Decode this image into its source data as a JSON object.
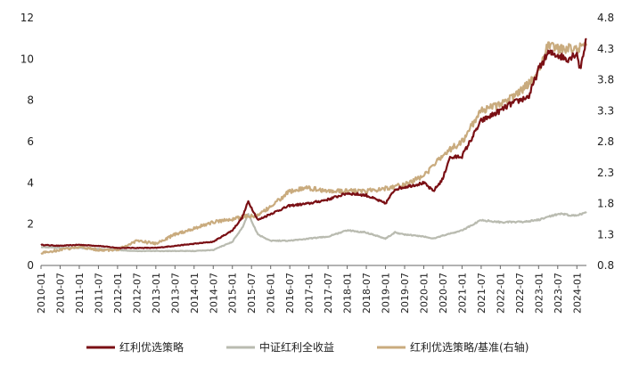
{
  "chart_data": {
    "type": "line",
    "title": "",
    "xlabel": "",
    "ylabel": "",
    "ylim": [
      0,
      12
    ],
    "yticks": [
      0,
      2,
      4,
      6,
      8,
      10,
      12
    ],
    "y2lim": [
      0.8,
      4.8
    ],
    "y2ticks": [
      "0.8",
      "1.3",
      "1.8",
      "2.3",
      "2.8",
      "3.3",
      "3.8",
      "4.3",
      "4.8"
    ],
    "xrange": [
      "2010-01",
      "2024-04"
    ],
    "xticks": [
      "2010-01",
      "2010-07",
      "2011-01",
      "2011-07",
      "2012-01",
      "2012-07",
      "2013-01",
      "2013-07",
      "2014-01",
      "2014-07",
      "2015-01",
      "2015-07",
      "2016-01",
      "2016-07",
      "2017-01",
      "2017-07",
      "2018-01",
      "2018-07",
      "2019-01",
      "2019-07",
      "2020-01",
      "2020-07",
      "2021-01",
      "2021-07",
      "2022-01",
      "2022-07",
      "2023-01",
      "2023-07",
      "2024-01"
    ],
    "legend_position": "bottom",
    "series": [
      {
        "name": "红利优选策略",
        "axis": "left",
        "color": "#7a0f14",
        "x": [
          "2010-01",
          "2010-07",
          "2011-01",
          "2011-07",
          "2012-01",
          "2012-07",
          "2013-01",
          "2013-07",
          "2014-01",
          "2014-07",
          "2015-01",
          "2015-04",
          "2015-06",
          "2015-09",
          "2016-01",
          "2016-07",
          "2017-01",
          "2017-07",
          "2018-01",
          "2018-07",
          "2019-01",
          "2019-04",
          "2019-07",
          "2020-01",
          "2020-04",
          "2020-07",
          "2020-09",
          "2021-01",
          "2021-07",
          "2022-01",
          "2022-04",
          "2022-07",
          "2022-10",
          "2023-01",
          "2023-04",
          "2023-07",
          "2023-10",
          "2024-01",
          "2024-02",
          "2024-04"
        ],
        "values": [
          1.0,
          0.95,
          1.0,
          0.95,
          0.85,
          0.85,
          0.85,
          0.95,
          1.05,
          1.15,
          1.7,
          2.3,
          3.1,
          2.2,
          2.5,
          2.9,
          3.0,
          3.2,
          3.5,
          3.4,
          3.0,
          3.7,
          3.8,
          4.0,
          3.6,
          4.2,
          5.2,
          5.3,
          7.0,
          7.5,
          7.8,
          8.0,
          8.2,
          9.5,
          10.3,
          10.2,
          10.0,
          10.3,
          9.5,
          11.0
        ]
      },
      {
        "name": "中证红利全收益",
        "axis": "left",
        "color": "#b9bbb0",
        "x": [
          "2010-01",
          "2010-07",
          "2011-01",
          "2011-07",
          "2012-01",
          "2012-07",
          "2013-01",
          "2013-07",
          "2014-01",
          "2014-07",
          "2015-01",
          "2015-04",
          "2015-06",
          "2015-09",
          "2016-01",
          "2016-07",
          "2017-01",
          "2017-07",
          "2018-01",
          "2018-07",
          "2019-01",
          "2019-04",
          "2019-07",
          "2020-01",
          "2020-04",
          "2020-07",
          "2021-01",
          "2021-07",
          "2022-01",
          "2022-07",
          "2023-01",
          "2023-07",
          "2024-01",
          "2024-04"
        ],
        "values": [
          0.9,
          0.85,
          0.85,
          0.8,
          0.75,
          0.7,
          0.7,
          0.7,
          0.7,
          0.75,
          1.15,
          1.8,
          2.5,
          1.5,
          1.2,
          1.2,
          1.3,
          1.4,
          1.7,
          1.6,
          1.3,
          1.6,
          1.5,
          1.4,
          1.3,
          1.45,
          1.7,
          2.2,
          2.1,
          2.1,
          2.2,
          2.5,
          2.4,
          2.6
        ]
      },
      {
        "name": "红利优选策略/基准(右轴)",
        "axis": "right",
        "color": "#c9ab7e",
        "x": [
          "2010-01",
          "2010-07",
          "2011-01",
          "2011-07",
          "2012-01",
          "2012-07",
          "2013-01",
          "2013-07",
          "2014-01",
          "2014-07",
          "2015-01",
          "2015-06",
          "2015-09",
          "2016-01",
          "2016-07",
          "2017-01",
          "2017-07",
          "2018-01",
          "2018-07",
          "2019-01",
          "2019-07",
          "2020-01",
          "2020-04",
          "2020-07",
          "2021-01",
          "2021-07",
          "2022-01",
          "2022-07",
          "2023-01",
          "2023-04",
          "2023-07",
          "2024-01",
          "2024-04"
        ],
        "values": [
          1.0,
          1.05,
          1.1,
          1.05,
          1.05,
          1.2,
          1.15,
          1.3,
          1.4,
          1.5,
          1.55,
          1.6,
          1.6,
          1.75,
          2.0,
          2.05,
          2.0,
          2.0,
          2.0,
          2.05,
          2.1,
          2.25,
          2.4,
          2.6,
          2.8,
          3.3,
          3.4,
          3.6,
          3.9,
          4.4,
          4.3,
          4.3,
          4.35
        ]
      }
    ]
  }
}
